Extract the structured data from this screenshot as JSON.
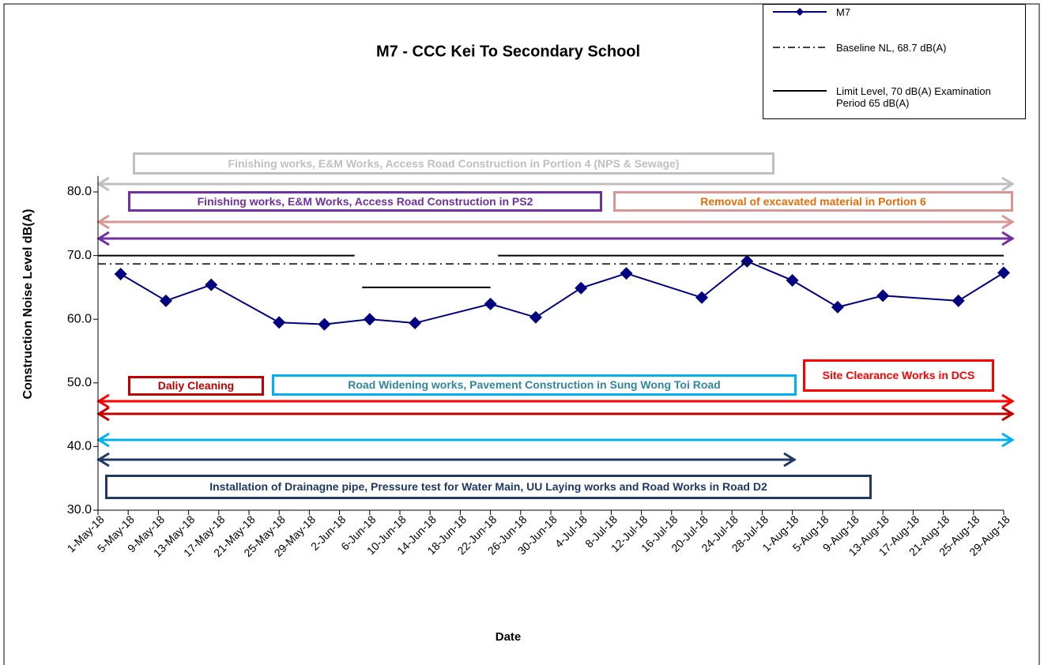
{
  "chart_data": {
    "type": "line",
    "title": "M7 - CCC Kei To Secondary School",
    "x_label": "Date",
    "y_label": "Construction Noise Level  dB(A)",
    "xlim": [
      "2018-05-01",
      "2018-08-29"
    ],
    "xticks": [
      {
        "value": "2018-05-01",
        "label": "1-May-18"
      },
      {
        "value": "2018-05-05",
        "label": "5-May-18"
      },
      {
        "value": "2018-05-09",
        "label": "9-May-18"
      },
      {
        "value": "2018-05-13",
        "label": "13-May-18"
      },
      {
        "value": "2018-05-17",
        "label": "17-May-18"
      },
      {
        "value": "2018-05-21",
        "label": "21-May-18"
      },
      {
        "value": "2018-05-25",
        "label": "25-May-18"
      },
      {
        "value": "2018-05-29",
        "label": "29-May-18"
      },
      {
        "value": "2018-06-02",
        "label": "2-Jun-18"
      },
      {
        "value": "2018-06-06",
        "label": "6-Jun-18"
      },
      {
        "value": "2018-06-10",
        "label": "10-Jun-18"
      },
      {
        "value": "2018-06-14",
        "label": "14-Jun-18"
      },
      {
        "value": "2018-06-18",
        "label": "18-Jun-18"
      },
      {
        "value": "2018-06-22",
        "label": "22-Jun-18"
      },
      {
        "value": "2018-06-26",
        "label": "26-Jun-18"
      },
      {
        "value": "2018-06-30",
        "label": "30-Jun-18"
      },
      {
        "value": "2018-07-04",
        "label": "4-Jul-18"
      },
      {
        "value": "2018-07-08",
        "label": "8-Jul-18"
      },
      {
        "value": "2018-07-12",
        "label": "12-Jul-18"
      },
      {
        "value": "2018-07-16",
        "label": "16-Jul-18"
      },
      {
        "value": "2018-07-20",
        "label": "20-Jul-18"
      },
      {
        "value": "2018-07-24",
        "label": "24-Jul-18"
      },
      {
        "value": "2018-07-28",
        "label": "28-Jul-18"
      },
      {
        "value": "2018-08-01",
        "label": "1-Aug-18"
      },
      {
        "value": "2018-08-05",
        "label": "5-Aug-18"
      },
      {
        "value": "2018-08-09",
        "label": "9-Aug-18"
      },
      {
        "value": "2018-08-13",
        "label": "13-Aug-18"
      },
      {
        "value": "2018-08-17",
        "label": "17-Aug-18"
      },
      {
        "value": "2018-08-21",
        "label": "21-Aug-18"
      },
      {
        "value": "2018-08-25",
        "label": "25-Aug-18"
      },
      {
        "value": "2018-08-29",
        "label": "29-Aug-18"
      }
    ],
    "ylim": [
      30,
      80
    ],
    "yticks": [
      {
        "value": 30,
        "label": "30.0"
      },
      {
        "value": 40,
        "label": "40.0"
      },
      {
        "value": 50,
        "label": "50.0"
      },
      {
        "value": 60,
        "label": "60.0"
      },
      {
        "value": 70,
        "label": "70.0"
      },
      {
        "value": 80,
        "label": "80.0"
      }
    ],
    "series": [
      {
        "name": "M7",
        "color": "#000080",
        "marker": "diamond",
        "style": "solid",
        "x": [
          "2018-05-04",
          "2018-05-10",
          "2018-05-16",
          "2018-05-25",
          "2018-05-31",
          "2018-06-06",
          "2018-06-12",
          "2018-06-22",
          "2018-06-28",
          "2018-07-04",
          "2018-07-10",
          "2018-07-20",
          "2018-07-26",
          "2018-08-01",
          "2018-08-07",
          "2018-08-13",
          "2018-08-23",
          "2018-08-29"
        ],
        "values": [
          67.1,
          62.9,
          65.4,
          59.5,
          59.2,
          60.0,
          59.4,
          62.4,
          60.3,
          64.9,
          67.2,
          63.4,
          69.1,
          66.1,
          61.9,
          63.7,
          62.9,
          67.3
        ]
      },
      {
        "name": "Baseline NL, 68.7 dB(A)",
        "color": "#000000",
        "style": "dashdot",
        "x": [
          "2018-05-01",
          "2018-08-29"
        ],
        "values": [
          68.7,
          68.7
        ]
      },
      {
        "name": "Limit Level, 70 dB(A) Examination Period  65 dB(A)",
        "color": "#000000",
        "style": "solid",
        "x": [
          "2018-05-01",
          "2018-06-04",
          "2018-06-05",
          "2018-06-05",
          "2018-06-22",
          "2018-06-23",
          "2018-06-23",
          "2018-08-29"
        ],
        "values": [
          70,
          70,
          null,
          65,
          65,
          null,
          70,
          70
        ]
      }
    ],
    "annotations": [
      {
        "text": "Finishing works, E&M Works, Access Road Construction in Portion 4 (NPS & Sewage)",
        "color": "#bfbfbf",
        "text_color": "#bfbfbf"
      },
      {
        "text": "Finishing works, E&M Works, Access Road Construction in PS2",
        "color": "#7030a0",
        "text_color": "#7030a0"
      },
      {
        "text": "Removal of excavated material in Portion 6",
        "color": "#d99694",
        "text_color": "#e46c0a"
      },
      {
        "text": "Daliy Cleaning",
        "color": "#c00000",
        "text_color": "#c00000"
      },
      {
        "text": "Road Widening works, Pavement Construction in Sung Wong Toi Road",
        "color": "#00b0f0",
        "text_color": "#31859c"
      },
      {
        "text": "Site Clearance Works in DCS",
        "color": "#ff0000",
        "text_color": "#ff0000"
      },
      {
        "text": "Installation of Drainagne pipe, Pressure test for Water Main, UU Laying works and Road Works in Road D2",
        "color": "#1f3864",
        "text_color": "#1f3864"
      }
    ]
  }
}
